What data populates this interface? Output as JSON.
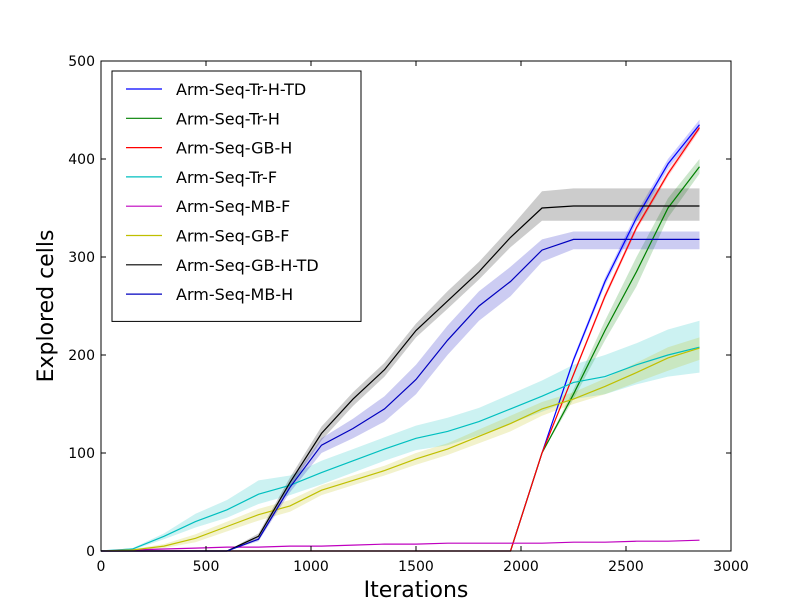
{
  "chart_data": {
    "type": "line",
    "title": "",
    "xlabel": "Iterations",
    "ylabel": "Explored cells",
    "xlim": [
      0,
      3000
    ],
    "ylim": [
      0,
      500
    ],
    "xticks": [
      0,
      500,
      1000,
      1500,
      2000,
      2500,
      3000
    ],
    "yticks": [
      0,
      100,
      200,
      300,
      400,
      500
    ],
    "grid": false,
    "legend_position": "top-left",
    "series": [
      {
        "name": "Arm-Seq-Tr-H-TD",
        "color": "#0000ff",
        "x": [
          0,
          150,
          300,
          450,
          600,
          750,
          900,
          1050,
          1200,
          1350,
          1500,
          1650,
          1800,
          1950,
          2100,
          2250,
          2400,
          2550,
          2700,
          2850
        ],
        "y": [
          0,
          0,
          0,
          0,
          0,
          0,
          0,
          0,
          0,
          0,
          0,
          0,
          0,
          0,
          100,
          195,
          275,
          340,
          395,
          435
        ],
        "lower": [
          0,
          0,
          0,
          0,
          0,
          0,
          0,
          0,
          0,
          0,
          0,
          0,
          0,
          0,
          100,
          192,
          271,
          335,
          390,
          430
        ],
        "upper": [
          0,
          0,
          0,
          0,
          0,
          0,
          0,
          0,
          0,
          0,
          0,
          0,
          0,
          0,
          100,
          198,
          279,
          345,
          400,
          440
        ]
      },
      {
        "name": "Arm-Seq-Tr-H",
        "color": "#008000",
        "x": [
          0,
          150,
          300,
          450,
          600,
          750,
          900,
          1050,
          1200,
          1350,
          1500,
          1650,
          1800,
          1950,
          2100,
          2250,
          2400,
          2550,
          2700,
          2850
        ],
        "y": [
          0,
          0,
          0,
          0,
          0,
          0,
          0,
          0,
          0,
          0,
          0,
          0,
          0,
          0,
          100,
          160,
          225,
          285,
          350,
          392
        ],
        "lower": [
          0,
          0,
          0,
          0,
          0,
          0,
          0,
          0,
          0,
          0,
          0,
          0,
          0,
          0,
          100,
          155,
          215,
          270,
          340,
          385
        ],
        "upper": [
          0,
          0,
          0,
          0,
          0,
          0,
          0,
          0,
          0,
          0,
          0,
          0,
          0,
          0,
          100,
          165,
          235,
          300,
          360,
          400
        ]
      },
      {
        "name": "Arm-Seq-GB-H",
        "color": "#ff0000",
        "x": [
          0,
          150,
          300,
          450,
          600,
          750,
          900,
          1050,
          1200,
          1350,
          1500,
          1650,
          1800,
          1950,
          2100,
          2250,
          2400,
          2550,
          2700,
          2850
        ],
        "y": [
          0,
          0,
          0,
          0,
          0,
          0,
          0,
          0,
          0,
          0,
          0,
          0,
          0,
          0,
          100,
          180,
          260,
          330,
          385,
          432
        ],
        "lower": [
          0,
          0,
          0,
          0,
          0,
          0,
          0,
          0,
          0,
          0,
          0,
          0,
          0,
          0,
          100,
          178,
          257,
          327,
          382,
          429
        ],
        "upper": [
          0,
          0,
          0,
          0,
          0,
          0,
          0,
          0,
          0,
          0,
          0,
          0,
          0,
          0,
          100,
          182,
          263,
          333,
          388,
          435
        ]
      },
      {
        "name": "Arm-Seq-Tr-F",
        "color": "#00bfbf",
        "x": [
          0,
          150,
          300,
          450,
          600,
          750,
          900,
          1050,
          1200,
          1350,
          1500,
          1650,
          1800,
          1950,
          2100,
          2250,
          2400,
          2550,
          2700,
          2850
        ],
        "y": [
          0,
          2,
          15,
          30,
          42,
          58,
          67,
          80,
          92,
          104,
          115,
          122,
          132,
          145,
          158,
          172,
          178,
          190,
          200,
          208
        ],
        "lower": [
          0,
          1,
          12,
          24,
          34,
          48,
          57,
          68,
          80,
          92,
          103,
          108,
          118,
          130,
          142,
          155,
          160,
          170,
          178,
          182
        ],
        "upper": [
          0,
          3,
          18,
          38,
          52,
          72,
          77,
          92,
          104,
          116,
          128,
          136,
          146,
          160,
          174,
          190,
          200,
          212,
          226,
          235
        ]
      },
      {
        "name": "Arm-Seq-MB-F",
        "color": "#bf00bf",
        "x": [
          0,
          150,
          300,
          450,
          600,
          750,
          900,
          1050,
          1200,
          1350,
          1500,
          1650,
          1800,
          1950,
          2100,
          2250,
          2400,
          2550,
          2700,
          2850
        ],
        "y": [
          0,
          1,
          2,
          3,
          4,
          4,
          5,
          5,
          6,
          7,
          7,
          8,
          8,
          8,
          8,
          9,
          9,
          10,
          10,
          11
        ],
        "lower": [
          0,
          1,
          2,
          3,
          4,
          4,
          5,
          5,
          6,
          7,
          7,
          8,
          8,
          8,
          8,
          9,
          9,
          10,
          10,
          11
        ],
        "upper": [
          0,
          1,
          2,
          3,
          4,
          4,
          5,
          5,
          6,
          7,
          7,
          8,
          8,
          8,
          8,
          9,
          9,
          10,
          10,
          11
        ]
      },
      {
        "name": "Arm-Seq-GB-F",
        "color": "#bfbf00",
        "x": [
          0,
          150,
          300,
          450,
          600,
          750,
          900,
          1050,
          1200,
          1350,
          1500,
          1650,
          1800,
          1950,
          2100,
          2250,
          2400,
          2550,
          2700,
          2850
        ],
        "y": [
          0,
          1,
          5,
          13,
          25,
          37,
          46,
          62,
          72,
          82,
          94,
          104,
          117,
          130,
          145,
          155,
          168,
          182,
          197,
          207
        ],
        "lower": [
          0,
          0,
          3,
          9,
          20,
          31,
          40,
          57,
          67,
          77,
          88,
          98,
          110,
          122,
          138,
          150,
          160,
          172,
          184,
          195
        ],
        "upper": [
          0,
          2,
          7,
          17,
          30,
          43,
          52,
          67,
          77,
          87,
          100,
          110,
          124,
          138,
          152,
          162,
          176,
          192,
          208,
          218
        ]
      },
      {
        "name": "Arm-Seq-GB-H-TD",
        "color": "#000000",
        "x": [
          0,
          150,
          300,
          450,
          600,
          750,
          900,
          1050,
          1200,
          1350,
          1500,
          1650,
          1800,
          1950,
          2100,
          2250,
          2400,
          2550,
          2700,
          2850
        ],
        "y": [
          0,
          0,
          0,
          0,
          0,
          15,
          70,
          120,
          155,
          185,
          225,
          255,
          285,
          320,
          350,
          352,
          352,
          352,
          352,
          352
        ],
        "lower": [
          0,
          0,
          0,
          0,
          0,
          12,
          65,
          113,
          148,
          178,
          218,
          247,
          277,
          310,
          337,
          337,
          337,
          337,
          337,
          337
        ],
        "upper": [
          0,
          0,
          0,
          0,
          0,
          18,
          75,
          127,
          162,
          192,
          232,
          265,
          295,
          330,
          367,
          370,
          370,
          370,
          370,
          370
        ]
      },
      {
        "name": "Arm-Seq-MB-H",
        "color": "#0000bf",
        "x": [
          0,
          150,
          300,
          450,
          600,
          750,
          900,
          1050,
          1200,
          1350,
          1500,
          1650,
          1800,
          1950,
          2100,
          2250,
          2400,
          2550,
          2700,
          2850
        ],
        "y": [
          0,
          0,
          0,
          0,
          0,
          12,
          65,
          108,
          125,
          145,
          175,
          215,
          250,
          275,
          307,
          318,
          318,
          318,
          318,
          318
        ],
        "lower": [
          0,
          0,
          0,
          0,
          0,
          10,
          60,
          100,
          115,
          132,
          160,
          200,
          235,
          260,
          295,
          308,
          308,
          308,
          308,
          308
        ],
        "upper": [
          0,
          0,
          0,
          0,
          0,
          14,
          70,
          115,
          135,
          158,
          190,
          230,
          265,
          290,
          318,
          326,
          326,
          326,
          326,
          326
        ]
      }
    ]
  }
}
